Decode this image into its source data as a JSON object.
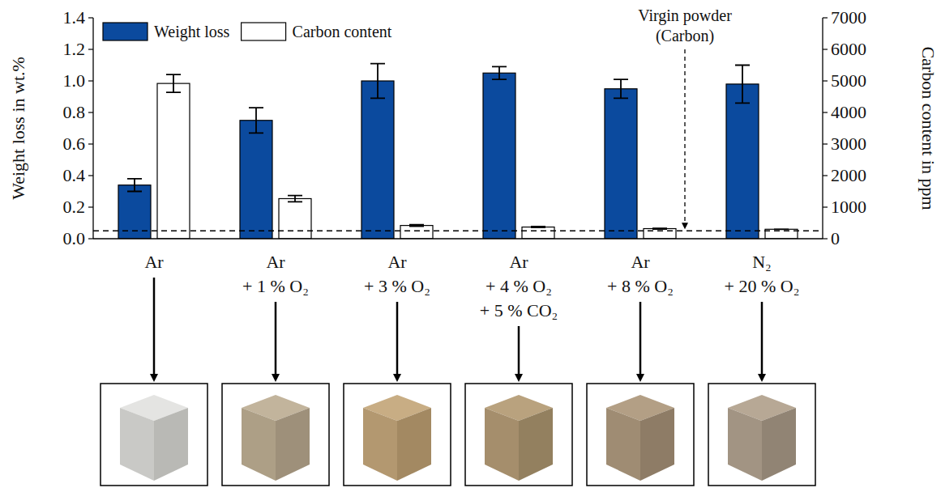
{
  "chart_data": {
    "type": "bar",
    "categories": [
      "Ar",
      "Ar + 1 % O₂",
      "Ar + 3 % O₂",
      "Ar + 4 % O₂ + 5 % CO₂",
      "Ar + 8 % O₂",
      "N₂ + 20 % O₂"
    ],
    "series": [
      {
        "name": "Weight loss",
        "color": "#0b4a9e",
        "values": [
          0.34,
          0.75,
          1.0,
          1.05,
          0.95,
          0.98
        ],
        "errors": [
          0.04,
          0.08,
          0.11,
          0.04,
          0.06,
          0.12
        ]
      },
      {
        "name": "Carbon content",
        "color": "#ffffff",
        "axis": "y2",
        "values": [
          4920,
          1270,
          420,
          370,
          320,
          300
        ],
        "errors": [
          280,
          100,
          25,
          15,
          12,
          0
        ]
      }
    ],
    "y_label": "Weight loss in wt.%",
    "y2_label": "Carbon content in ppm",
    "ylim": [
      0,
      1.4
    ],
    "yticks": [
      {
        "value": 0,
        "label": "0.0"
      },
      {
        "value": 0.2,
        "label": "0.2"
      },
      {
        "value": 0.4,
        "label": "0.4"
      },
      {
        "value": 0.6,
        "label": "0.6"
      },
      {
        "value": 0.8,
        "label": "0.8"
      },
      {
        "value": 1,
        "label": "1.0"
      },
      {
        "value": 1.2,
        "label": "1.2"
      },
      {
        "value": 1.4,
        "label": "1.4"
      }
    ],
    "y2lim": [
      0,
      7000
    ],
    "y2ticks": [
      0,
      1000,
      2000,
      3000,
      4000,
      5000,
      6000,
      7000
    ],
    "reference_lines": [
      {
        "label": "Virgin powder (Carbon)",
        "value": 250,
        "axis": "y2"
      }
    ],
    "legend": "upper left",
    "grid": false
  }
}
